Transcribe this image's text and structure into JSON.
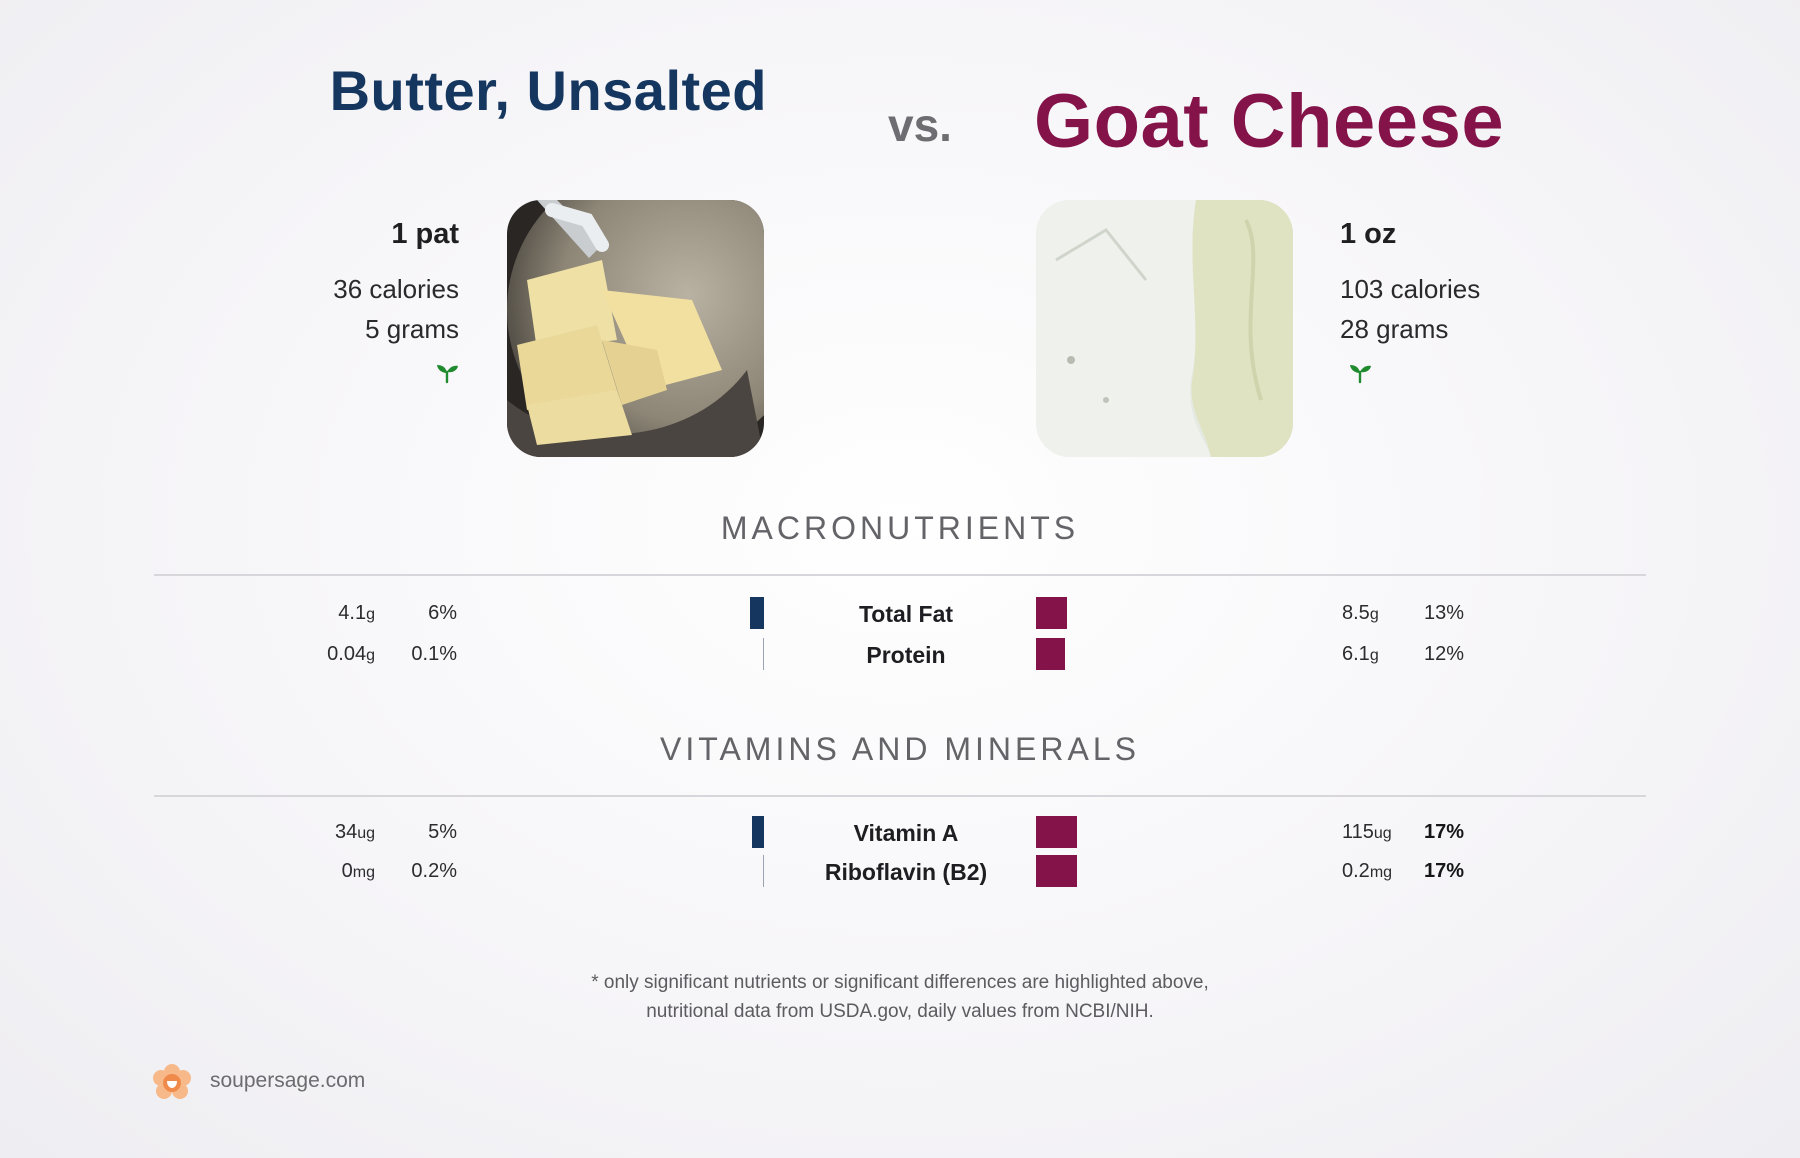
{
  "food_left": {
    "name": "Butter, Unsalted",
    "serving": "1 pat",
    "calories": "36 calories",
    "grams": "5 grams",
    "color": "#15375f",
    "icon": "sprout-icon"
  },
  "vs_label": "vs.",
  "food_right": {
    "name": "Goat Cheese",
    "serving": "1 oz",
    "calories": "103 calories",
    "grams": "28 grams",
    "color": "#84134a",
    "icon": "sprout-icon"
  },
  "sections": [
    {
      "title": "MACRONUTRIENTS",
      "rows": [
        {
          "name": "Total Fat",
          "left_value": "4.1",
          "left_unit": "g",
          "left_pct": "6%",
          "left_level": 0.06,
          "right_value": "8.5",
          "right_unit": "g",
          "right_pct": "13%",
          "right_level": 0.13,
          "right_bold": false
        },
        {
          "name": "Protein",
          "left_value": "0.04",
          "left_unit": "g",
          "left_pct": "0.1%",
          "left_level": 0.001,
          "right_value": "6.1",
          "right_unit": "g",
          "right_pct": "12%",
          "right_level": 0.12,
          "right_bold": false
        }
      ]
    },
    {
      "title": "VITAMINS AND MINERALS",
      "rows": [
        {
          "name": "Vitamin A",
          "left_value": "34",
          "left_unit": "ug",
          "left_pct": "5%",
          "left_level": 0.05,
          "right_value": "115",
          "right_unit": "ug",
          "right_pct": "17%",
          "right_level": 0.17,
          "right_bold": true
        },
        {
          "name": "Riboflavin (B2)",
          "left_value": "0",
          "left_unit": "mg",
          "left_pct": "0.2%",
          "left_level": 0.002,
          "right_value": "0.2",
          "right_unit": "mg",
          "right_pct": "17%",
          "right_level": 0.17,
          "right_bold": true
        }
      ]
    }
  ],
  "footnote": {
    "line1": "* only significant nutrients or significant differences are highlighted above,",
    "line2": "nutritional data from USDA.gov, daily values from NCBI/NIH."
  },
  "brand": {
    "text": "soupersage.com",
    "icon": "flower-logo-icon"
  }
}
